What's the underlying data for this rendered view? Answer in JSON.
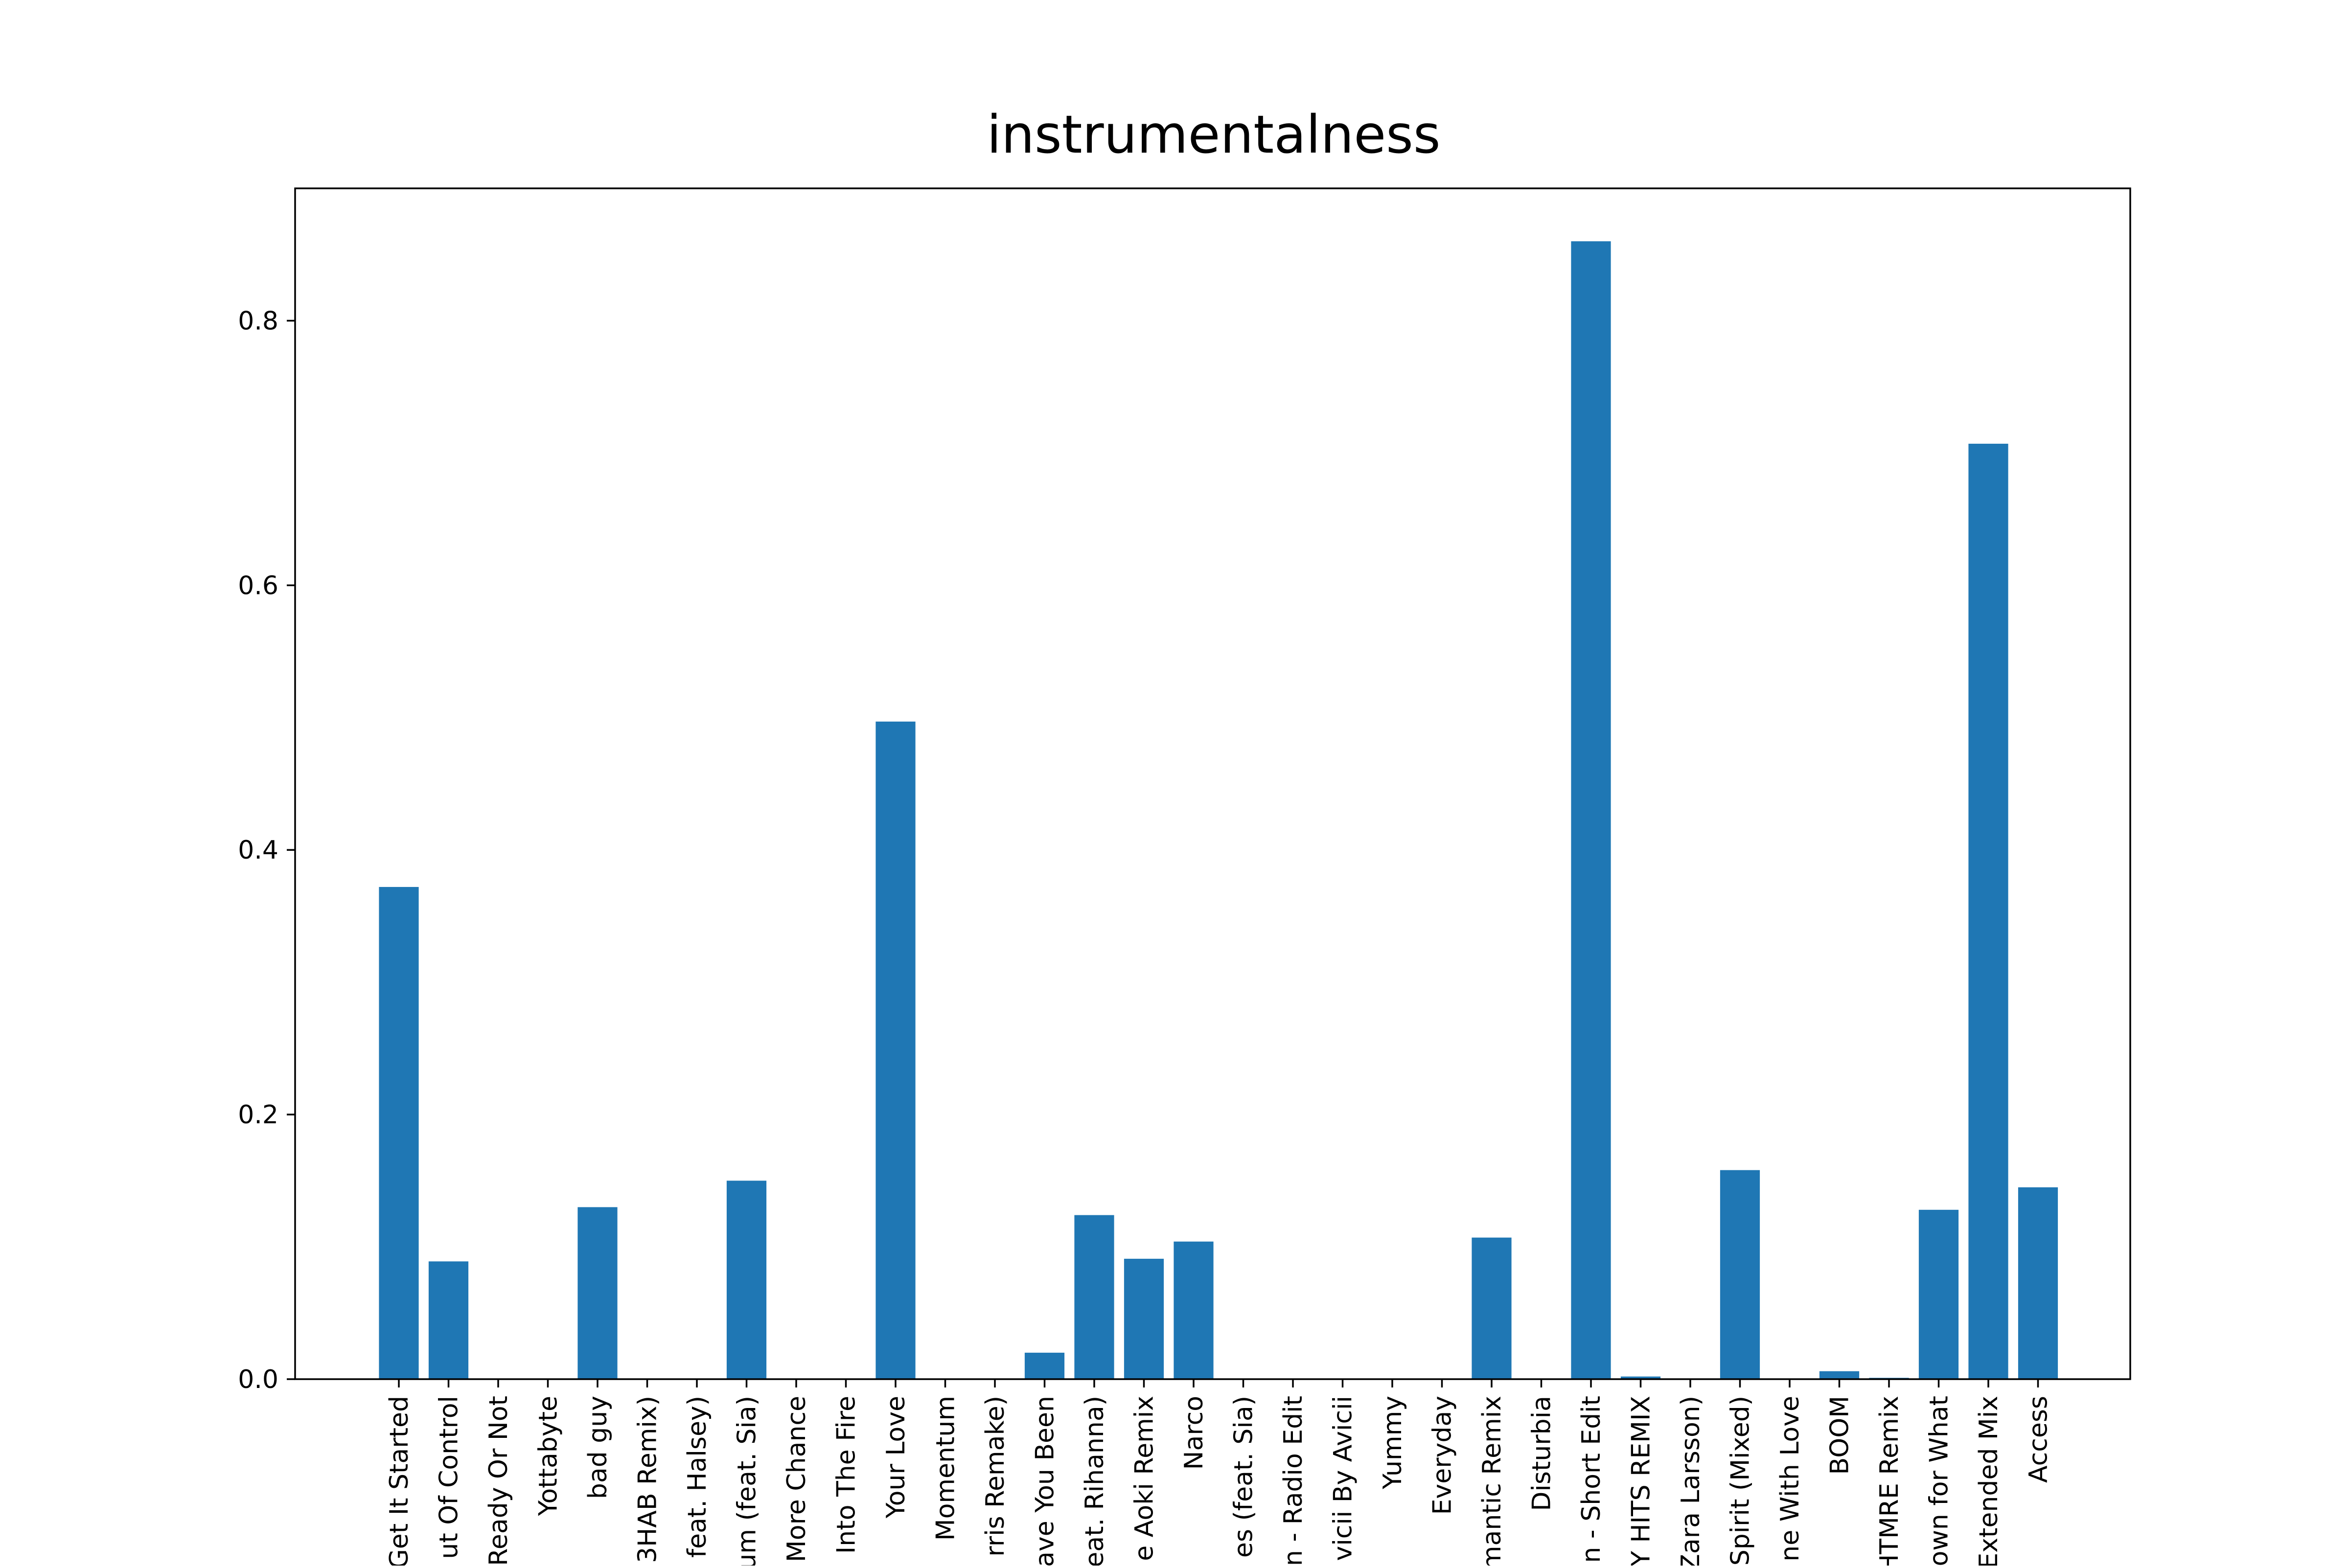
{
  "colors": {
    "bar": "#1f77b4",
    "axis": "#000000",
    "background": "#ffffff"
  },
  "chart_data": {
    "type": "bar",
    "title": "instrumentalness",
    "xlabel": "",
    "ylabel": "",
    "ylim": [
      0,
      0.9
    ],
    "yticks": [
      0.0,
      0.2,
      0.4,
      0.6,
      0.8
    ],
    "ytick_labels": [
      "0.0",
      "0.2",
      "0.4",
      "0.6",
      "0.8"
    ],
    "grid": false,
    "categories": [
      "Get It Started",
      "ut Of Control",
      "Ready Or Not",
      "Yottabyte",
      "bad guy",
      "3HAB Remix)",
      "feat. Halsey)",
      "um (feat. Sia)",
      "More Chance",
      "Into The Fire",
      "Your Love",
      "Momentum",
      "rris Remake)",
      "ave You Been",
      "feat. Rihanna)",
      "e Aoki Remix",
      "Narco",
      "es (feat. Sia)",
      "n - Radio Edit",
      "vicii By Avicii",
      "Yummy",
      "Everyday",
      "mantic Remix",
      "Disturbia",
      "n - Short Edit",
      "Y HITS REMIX",
      "Zara Larsson)",
      "Spirit (Mixed)",
      "ne With Love",
      "BOOM",
      "HTMRE Remix",
      "own for What",
      "Extended Mix",
      "Access"
    ],
    "values": [
      0.372,
      0.089,
      0.0,
      0.0,
      0.13,
      0.0,
      0.0,
      0.15,
      0.0,
      0.0,
      0.497,
      0.0,
      0.0,
      0.02,
      0.124,
      0.091,
      0.104,
      0.0,
      0.0,
      0.0,
      0.0,
      0.0,
      0.107,
      0.0,
      0.86,
      0.002,
      0.0,
      0.158,
      0.0,
      0.006,
      0.001,
      0.128,
      0.707,
      0.145
    ]
  }
}
